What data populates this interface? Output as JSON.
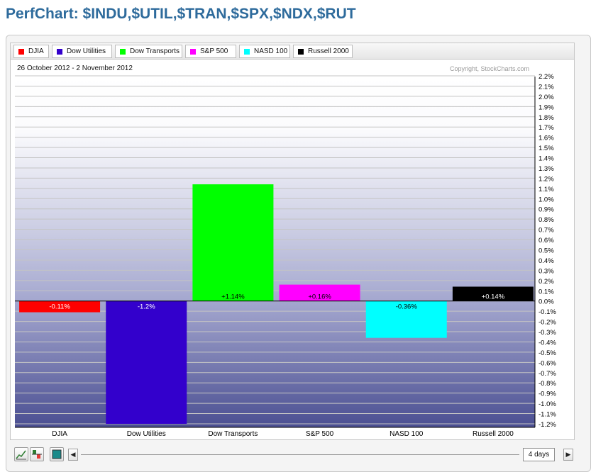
{
  "page": {
    "title": "PerfChart: $INDU,$UTIL,$TRAN,$SPX,$NDX,$RUT"
  },
  "chart_info": {
    "date_range": "26 October 2012 - 2 November 2012",
    "copyright": "Copyright, StockCharts.com"
  },
  "legend": [
    {
      "label": "DJIA",
      "color": "#ff0000"
    },
    {
      "label": "Dow Utilities",
      "color": "#3300cc"
    },
    {
      "label": "Dow Transports",
      "color": "#00ff00"
    },
    {
      "label": "S&P 500",
      "color": "#ff00ff"
    },
    {
      "label": "NASD 100",
      "color": "#00ffff"
    },
    {
      "label": "Russell 2000",
      "color": "#000000"
    }
  ],
  "chart_data": {
    "type": "bar",
    "categories": [
      "DJIA",
      "Dow Utilities",
      "Dow Transports",
      "S&P 500",
      "NASD 100",
      "Russell 2000"
    ],
    "values": [
      -0.11,
      -1.2,
      1.14,
      0.16,
      -0.36,
      0.14
    ],
    "value_labels": [
      "-0.11%",
      "-1.2%",
      "+1.14%",
      "+0.16%",
      "-0.36%",
      "+0.14%"
    ],
    "colors": [
      "#ff0000",
      "#3300cc",
      "#00ff00",
      "#ff00ff",
      "#00ffff",
      "#000000"
    ],
    "label_colors": [
      "#ffffff",
      "#ffffff",
      "#000000",
      "#000000",
      "#000000",
      "#ffffff"
    ],
    "ylim": [
      -1.2,
      2.2
    ],
    "y_ticks": [
      2.2,
      2.1,
      2.0,
      1.9,
      1.8,
      1.7,
      1.6,
      1.5,
      1.4,
      1.3,
      1.2,
      1.1,
      1.0,
      0.9,
      0.8,
      0.7,
      0.6,
      0.5,
      0.4,
      0.3,
      0.2,
      0.1,
      0.0,
      -0.1,
      -0.2,
      -0.3,
      -0.4,
      -0.5,
      -0.6,
      -0.7,
      -0.8,
      -0.9,
      -1.0,
      -1.1,
      -1.2
    ],
    "y_tick_labels": [
      "2.2%",
      "2.1%",
      "2.0%",
      "1.9%",
      "1.8%",
      "1.7%",
      "1.6%",
      "1.5%",
      "1.4%",
      "1.3%",
      "1.2%",
      "1.1%",
      "1.0%",
      "0.9%",
      "0.8%",
      "0.7%",
      "0.6%",
      "0.5%",
      "0.4%",
      "0.3%",
      "0.2%",
      "0.1%",
      "0.0%",
      "-0.1%",
      "-0.2%",
      "-0.3%",
      "-0.4%",
      "-0.5%",
      "-0.6%",
      "-0.7%",
      "-0.8%",
      "-0.9%",
      "-1.0%",
      "-1.1%",
      "-1.2%"
    ],
    "grid": true,
    "legend_position": "top-left"
  },
  "toolbar": {
    "period_label": "4 days",
    "left_arrow": "◀",
    "right_arrow": "▶"
  }
}
